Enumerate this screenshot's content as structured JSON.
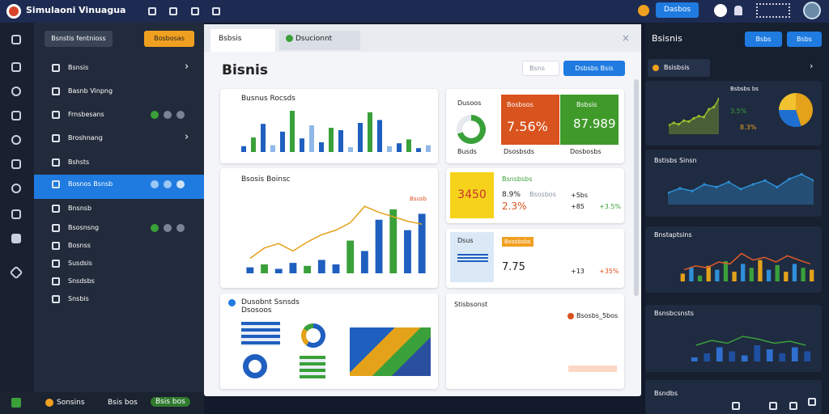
{
  "topbar": {
    "title": "Simulaoni Vinuagua",
    "button": "Dasbos"
  },
  "sidebar": {
    "buttons": [
      "Bsnstis fentnioss",
      "Bosbosas"
    ],
    "items": [
      "Bsnsis",
      "Basnb Vinpng",
      "Frnsbesans",
      "Broshnang",
      "Bshsts",
      "Bosnos Bsnsb",
      "Bnsnsb",
      "Bsosnsng",
      "Bosnss",
      "Susdsis",
      "Snsdsbs",
      "Snsbis"
    ],
    "footer": [
      "Sonsins",
      "Bsis bos",
      "Bsis bos"
    ]
  },
  "main": {
    "tabs": [
      "Bsbsis",
      "Dsucionnt"
    ],
    "heading": "Bisnis",
    "search": "Bsns",
    "action": "Dsbsbs Bsis",
    "sales": {
      "title": "Busnus Rocsds",
      "chart": {
        "type": "bar",
        "ylim": [
          0,
          100
        ],
        "values": [
          12,
          30,
          58,
          14,
          42,
          85,
          28,
          55,
          20,
          50,
          45,
          10,
          60,
          82,
          66,
          12,
          18,
          26,
          8,
          14
        ],
        "colors": [
          "#1f5fbf",
          "#3aa03a",
          "#1f5fbf",
          "#8fb8e8"
        ]
      }
    },
    "kpi": {
      "title": "Dusoos",
      "sub": "Busds",
      "donut": {
        "type": "donut",
        "values": [
          70,
          30
        ],
        "colors": [
          "#3aa03a",
          "#e6e9ee"
        ]
      },
      "orange": {
        "label": "Bosbsos",
        "value": "7.56%",
        "foot": "Dsosbsds"
      },
      "green": {
        "label": "Bsbsis",
        "value": "87.989",
        "foot": "Dosbosbs"
      }
    },
    "trend": {
      "title": "Bsosis Boinsc",
      "legend": "Bsusb",
      "chart": {
        "type": "combo",
        "ylim": [
          0,
          100
        ],
        "values": [
          8,
          12,
          6,
          14,
          10,
          18,
          12,
          44,
          30,
          72,
          86,
          58,
          80
        ],
        "colors": [
          "#1f5fbf",
          "#3aa03a",
          "#1f5fbf"
        ],
        "line": [
          20,
          34,
          40,
          30,
          42,
          52,
          58,
          68,
          90,
          82,
          76,
          70,
          66
        ],
        "line_color": "#e3a21a"
      }
    },
    "yellow": {
      "tile": "3450",
      "title": "Bsnsbsbs",
      "label": "Bsosbos",
      "a": "8.9%",
      "b": "2.3%",
      "c": "+5bs",
      "d": "+85",
      "e": "+3.5%"
    },
    "blue": {
      "tile": "Dsus",
      "title": "Bsosbsbs",
      "value": "7.75",
      "c": "+13",
      "d": "+35%"
    },
    "docs": {
      "title": "Dusobnt Ssnsds",
      "sub": "Dsosoos",
      "donut": {
        "type": "donut",
        "values": [
          60,
          25,
          15
        ],
        "colors": [
          "#1f5fbf",
          "#e3a21a",
          "#3aa03a"
        ]
      }
    },
    "stats": {
      "title": "Stisbsonst",
      "label": "Bsosbs_5bos"
    }
  },
  "right": {
    "title": "Bsisnis",
    "buttons": [
      "Bsbs",
      "Bsbs"
    ],
    "tab": "Bsisbsis",
    "c1": {
      "lines": [
        "Bsbsbs bs",
        "3.5%",
        "8.3%"
      ],
      "chart": {
        "type": "area",
        "ylim": [
          0,
          100
        ],
        "values": [
          20,
          25,
          22,
          30,
          28,
          35,
          40,
          38,
          55,
          60,
          78
        ],
        "color": "#9bbf2a"
      },
      "pie": {
        "type": "pie",
        "values": [
          45,
          30,
          25
        ],
        "colors": [
          "#e3a21a",
          "#1f6fd0",
          "#f2c230"
        ]
      }
    },
    "c2": {
      "title": "Bstisbs Sinsn",
      "chart": {
        "type": "area",
        "ylim": [
          0,
          100
        ],
        "values": [
          30,
          42,
          35,
          52,
          45,
          58,
          40,
          52,
          62,
          45,
          66,
          78,
          62
        ],
        "color": "#2f8fd8"
      }
    },
    "c3": {
      "title": "Bnstaptsins",
      "chart": {
        "type": "combo",
        "ylim": [
          0,
          100
        ],
        "values": [
          20,
          35,
          15,
          40,
          30,
          52,
          25,
          45,
          35,
          55,
          30,
          42,
          25,
          45,
          35,
          30
        ],
        "colors": [
          "#e3a21a",
          "#2f8fd8",
          "#3aa03a"
        ],
        "line": [
          30,
          40,
          35,
          50,
          45,
          72,
          55,
          62,
          50,
          66,
          55,
          45
        ],
        "line_color": "#e35a2a"
      }
    },
    "c4": {
      "title": "Bsnsbcsnsts",
      "chart": {
        "type": "combo",
        "ylim": [
          0,
          100
        ],
        "values": [
          10,
          20,
          35,
          25,
          15,
          40,
          30,
          20,
          35,
          25
        ],
        "colors": [
          "#2f6fd0",
          "#1f4fa0"
        ],
        "line": [
          40,
          52,
          45,
          62,
          55,
          45,
          50,
          40
        ],
        "line_color": "#3aa03a"
      }
    },
    "c5": {
      "title": "Bsndbs"
    }
  }
}
